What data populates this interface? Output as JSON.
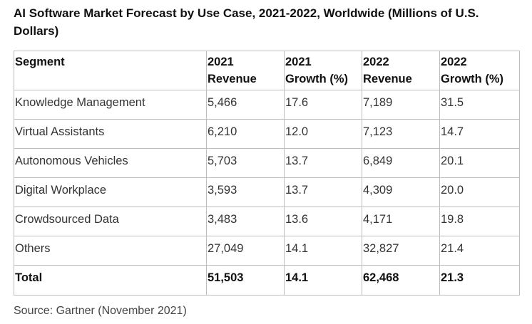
{
  "title": "AI Software Market Forecast by Use Case, 2021-2022, Worldwide (Millions of U.S. Dollars)",
  "table": {
    "headers": [
      [
        "Segment",
        ""
      ],
      [
        "2021",
        "Revenue"
      ],
      [
        "2021",
        "Growth (%)"
      ],
      [
        "2022",
        "Revenue"
      ],
      [
        "2022",
        "Growth (%)"
      ]
    ],
    "rows": [
      [
        "Knowledge Management",
        "5,466",
        "17.6",
        "7,189",
        "31.5"
      ],
      [
        "Virtual Assistants",
        "6,210",
        "12.0",
        "7,123",
        "14.7"
      ],
      [
        "Autonomous Vehicles",
        "5,703",
        "13.7",
        "6,849",
        "20.1"
      ],
      [
        "Digital Workplace",
        "3,593",
        "13.7",
        "4,309",
        "20.0"
      ],
      [
        "Crowdsourced Data",
        "3,483",
        "13.6",
        "4,171",
        "19.8"
      ],
      [
        "Others",
        "27,049",
        "14.1",
        "32,827",
        "21.4"
      ]
    ],
    "total": [
      "Total",
      "51,503",
      "14.1",
      "62,468",
      "21.3"
    ]
  },
  "source": "Source: Gartner (November 2021)"
}
